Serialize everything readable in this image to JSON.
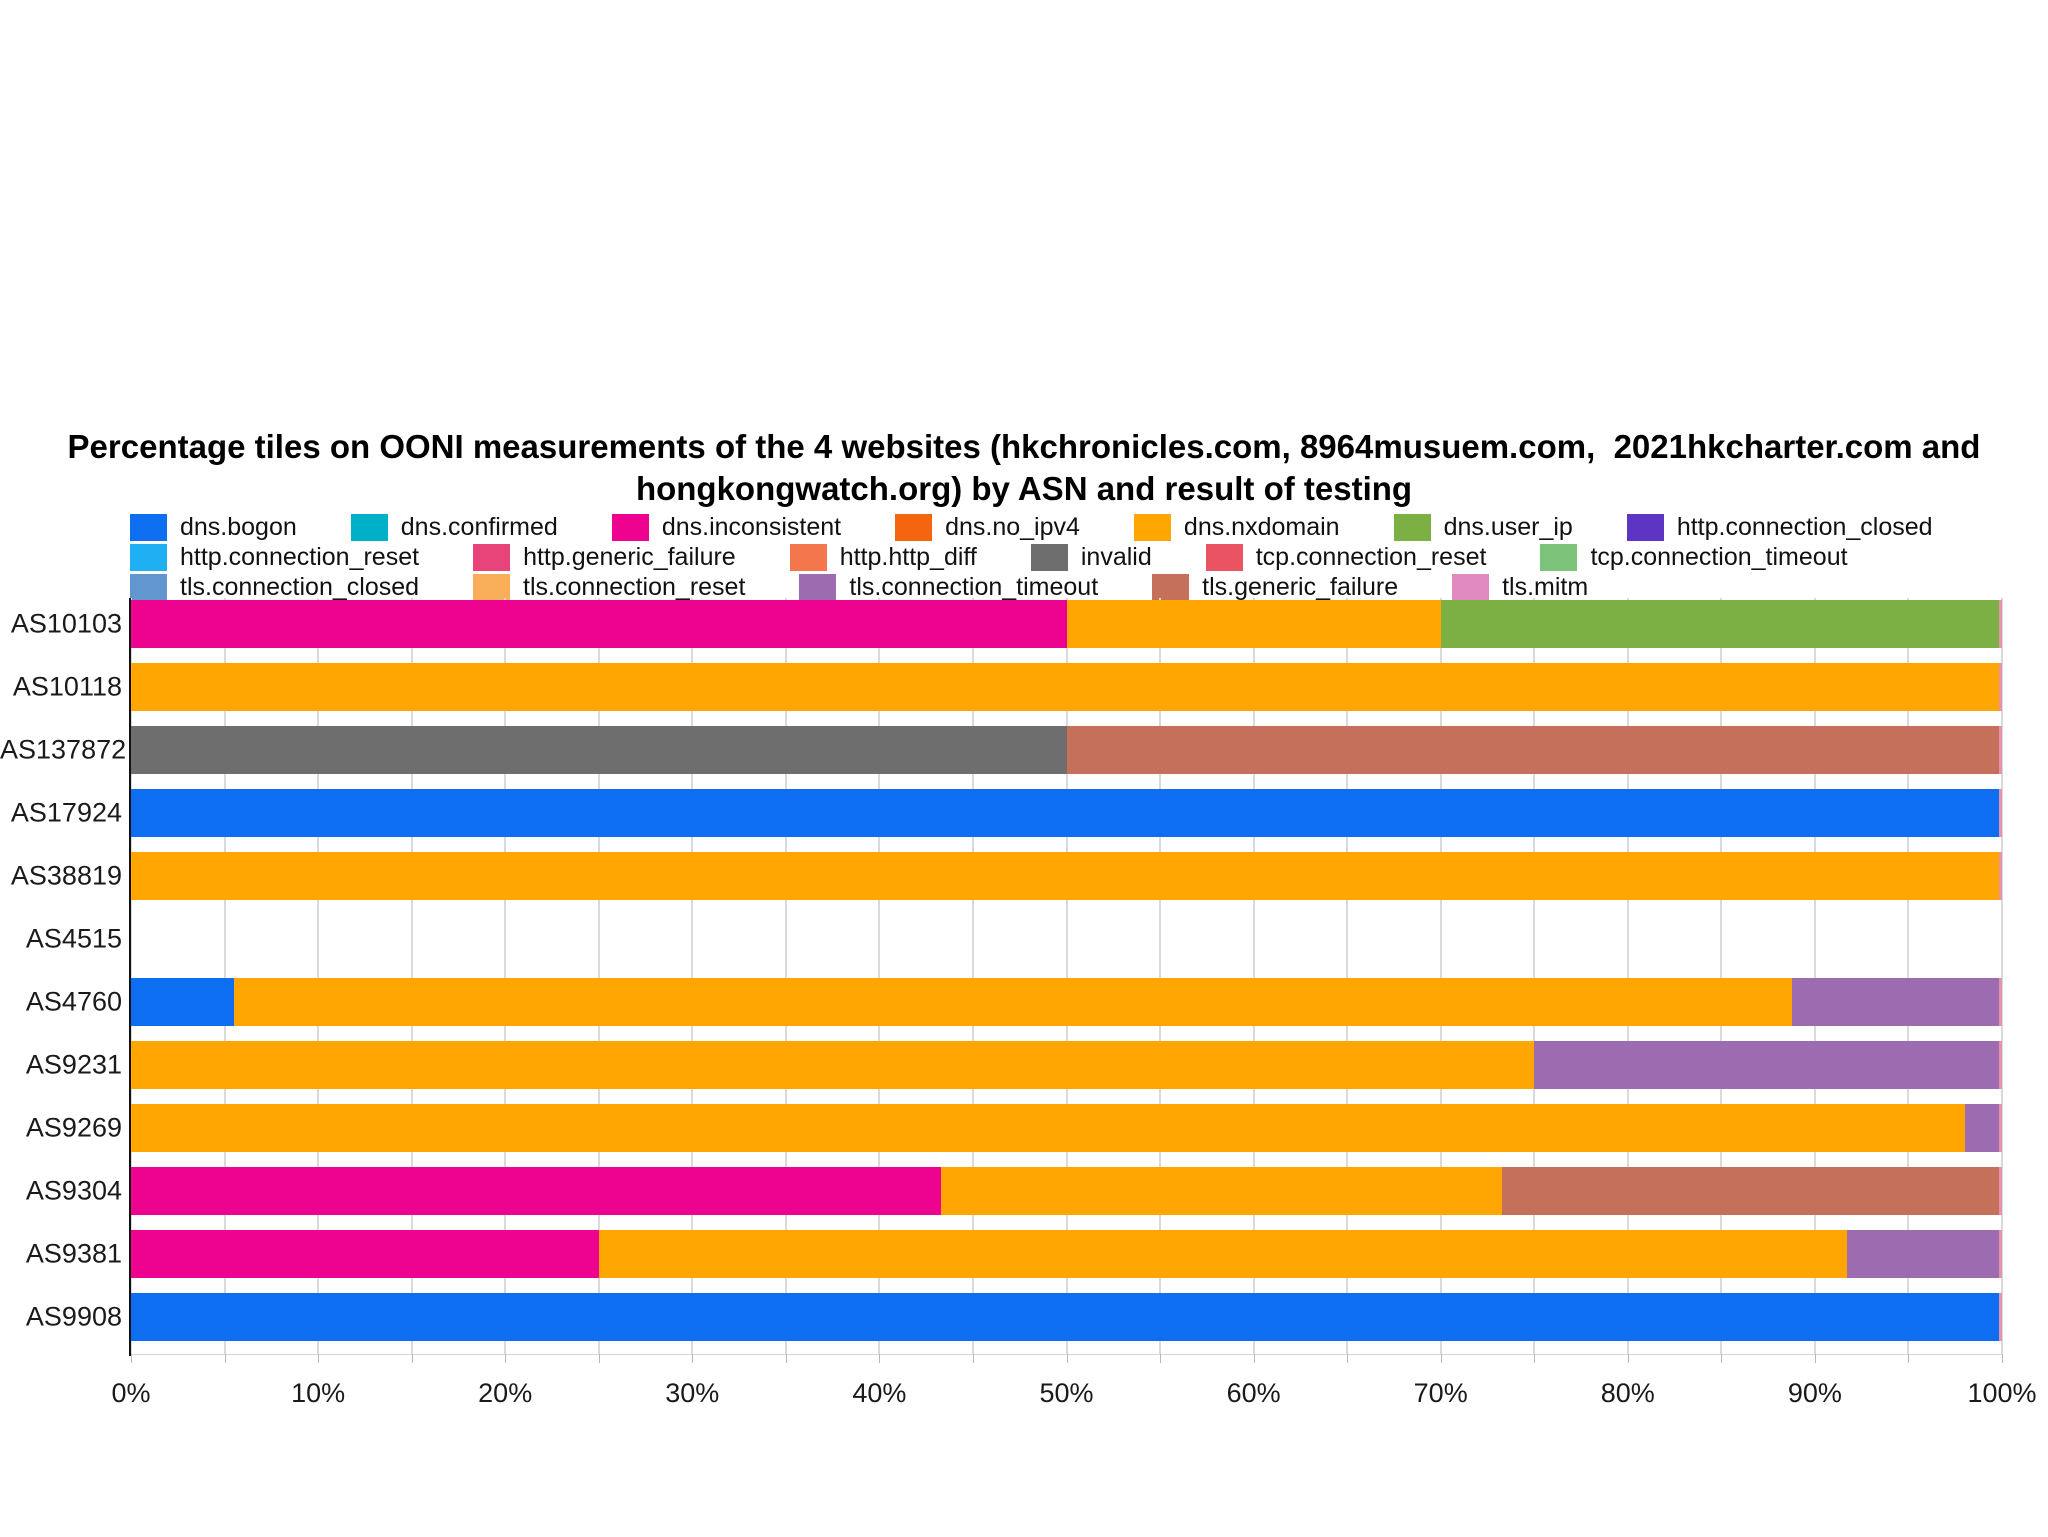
{
  "chart_data": {
    "type": "bar",
    "stacked": true,
    "orientation": "horizontal",
    "title": "Percentage tiles on OONI measurements of the 4 websites (hkchronicles.com, 8964musuem.com,  2021hkcharter.com and hongkongwatch.org) by ASN and result of testing",
    "title_lines": {
      "0": "Percentage tiles on OONI measurements of the 4 websites (hkchronicles.com, 8964musuem.com,  2021hkcharter.com and",
      "1": "hongkongwatch.org) by ASN and result of testing"
    },
    "xlabel": "",
    "ylabel": "",
    "x_range_pct": [
      0,
      100
    ],
    "x_ticks": [
      "0%",
      "10%",
      "20%",
      "30%",
      "40%",
      "50%",
      "60%",
      "70%",
      "80%",
      "90%",
      "100%"
    ],
    "minor_grid_step_pct": 5,
    "grid": true,
    "legend_position": "top",
    "colors": {
      "dns.bogon": "#0d6ef2",
      "dns.confirmed": "#00b0c8",
      "dns.inconsistent": "#ee0290",
      "dns.no_ipv4": "#f4650f",
      "dns.nxdomain": "#ffa602",
      "dns.user_ip": "#7cb044",
      "http.connection_closed": "#5d35c2",
      "http.connection_reset": "#1fb0f4",
      "http.generic_failure": "#e8447a",
      "http.http_diff": "#f4764d",
      "invalid": "#6e6e6e",
      "tcp.connection_reset": "#ea5462",
      "tcp.connection_timeout": "#7dc47a",
      "tls.connection_closed": "#6296cf",
      "tls.connection_reset": "#f8ad59",
      "tls.connection_timeout": "#9d6cb0",
      "tls.generic_failure": "#c4705a",
      "tls.mitm": "#e18ac0"
    },
    "legend_rows": [
      [
        "dns.bogon",
        "dns.confirmed",
        "dns.inconsistent",
        "dns.no_ipv4",
        "dns.nxdomain",
        "dns.user_ip",
        "http.connection_closed"
      ],
      [
        "http.connection_reset",
        "http.generic_failure",
        "http.http_diff",
        "invalid",
        "tcp.connection_reset",
        "tcp.connection_timeout"
      ],
      [
        "tls.connection_closed",
        "tls.connection_reset",
        "tls.connection_timeout",
        "tls.generic_failure",
        "tls.mitm"
      ]
    ],
    "categories": [
      "AS10103",
      "AS10118",
      "AS137872",
      "AS17924",
      "AS38819",
      "AS4515",
      "AS4760",
      "AS9231",
      "AS9269",
      "AS9304",
      "AS9381",
      "AS9908"
    ],
    "rows": [
      {
        "asn": "AS10103",
        "segments": [
          {
            "key": "dns.inconsistent",
            "value": 50
          },
          {
            "key": "dns.nxdomain",
            "value": 20
          },
          {
            "key": "dns.user_ip",
            "value": 30
          }
        ]
      },
      {
        "asn": "AS10118",
        "segments": [
          {
            "key": "dns.nxdomain",
            "value": 100
          }
        ]
      },
      {
        "asn": "AS137872",
        "segments": [
          {
            "key": "invalid",
            "value": 50
          },
          {
            "key": "tls.generic_failure",
            "value": 50
          }
        ]
      },
      {
        "asn": "AS17924",
        "segments": [
          {
            "key": "dns.bogon",
            "value": 100
          }
        ]
      },
      {
        "asn": "AS38819",
        "segments": [
          {
            "key": "dns.nxdomain",
            "value": 100
          }
        ]
      },
      {
        "asn": "AS4515",
        "segments": []
      },
      {
        "asn": "AS4760",
        "segments": [
          {
            "key": "dns.bogon",
            "value": 5.5
          },
          {
            "key": "dns.nxdomain",
            "value": 83.3
          },
          {
            "key": "tls.connection_timeout",
            "value": 11.2
          }
        ]
      },
      {
        "asn": "AS9231",
        "segments": [
          {
            "key": "dns.nxdomain",
            "value": 75
          },
          {
            "key": "tls.connection_timeout",
            "value": 25
          }
        ]
      },
      {
        "asn": "AS9269",
        "segments": [
          {
            "key": "dns.nxdomain",
            "value": 98
          },
          {
            "key": "tls.connection_timeout",
            "value": 2
          }
        ]
      },
      {
        "asn": "AS9304",
        "segments": [
          {
            "key": "dns.inconsistent",
            "value": 43.3
          },
          {
            "key": "dns.nxdomain",
            "value": 30
          },
          {
            "key": "tls.generic_failure",
            "value": 26.7
          }
        ]
      },
      {
        "asn": "AS9381",
        "segments": [
          {
            "key": "dns.inconsistent",
            "value": 25
          },
          {
            "key": "dns.nxdomain",
            "value": 66.7
          },
          {
            "key": "tls.connection_timeout",
            "value": 8.3
          }
        ]
      },
      {
        "asn": "AS9908",
        "segments": [
          {
            "key": "dns.bogon",
            "value": 100
          }
        ]
      }
    ]
  }
}
